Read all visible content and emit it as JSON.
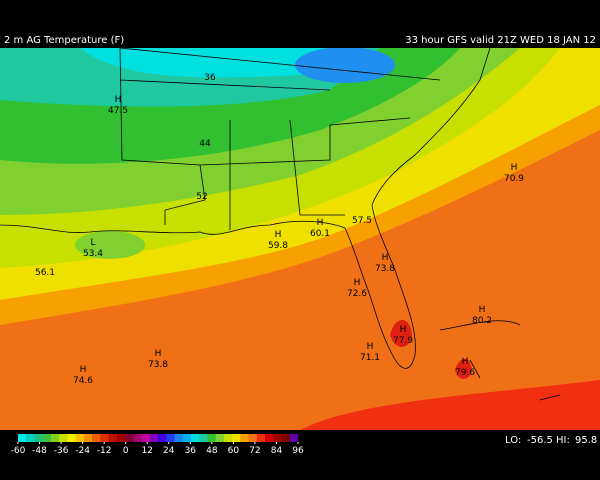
{
  "header": {
    "title": "2 m AG Temperature (F)",
    "run": "33 hour GFS valid 21Z WED 18 JAN 12"
  },
  "map": {
    "labels": [
      {
        "symbol": "H",
        "value": 47.5
      },
      {
        "value": 36
      },
      {
        "value": 44
      },
      {
        "value": 52
      },
      {
        "symbol": "H",
        "value": 70.9
      },
      {
        "symbol": "L",
        "value": 53.4
      },
      {
        "value": 56.1
      },
      {
        "symbol": "H",
        "value": 59.8
      },
      {
        "symbol": "H",
        "value": 60.1
      },
      {
        "value": 57.5
      },
      {
        "symbol": "H",
        "value": 73.8
      },
      {
        "symbol": "H",
        "value": 72.6
      },
      {
        "symbol": "H",
        "value": 77.9
      },
      {
        "symbol": "H",
        "value": 80.2
      },
      {
        "symbol": "H",
        "value": 71.1
      },
      {
        "symbol": "H",
        "value": 73.8
      },
      {
        "symbol": "H",
        "value": 74.6
      },
      {
        "symbol": "H",
        "value": 79.6
      }
    ]
  },
  "legend": {
    "ticks": [
      -60,
      -48,
      -36,
      -24,
      -12,
      0,
      12,
      24,
      36,
      48,
      60,
      72,
      84,
      96
    ],
    "colors": [
      "#00e8e8",
      "#00d0c0",
      "#20c080",
      "#40c040",
      "#80d020",
      "#c8e000",
      "#f0f000",
      "#f8c000",
      "#f89000",
      "#f06000",
      "#e03000",
      "#c01000",
      "#a00000",
      "#800030",
      "#a00070",
      "#c000a0",
      "#8000c0",
      "#4000e0",
      "#2040f0",
      "#2080f0",
      "#00b0f0",
      "#00e0e0",
      "#20c8a0",
      "#30c030",
      "#80d030",
      "#c8e000",
      "#f0e000",
      "#f8a000",
      "#f07018",
      "#f03010",
      "#d00000",
      "#a00000",
      "#800000",
      "#6000a0"
    ]
  },
  "extremes": {
    "lo_label": "LO:",
    "lo": -56.5,
    "hi_label": "HI:",
    "hi": 95.8
  }
}
